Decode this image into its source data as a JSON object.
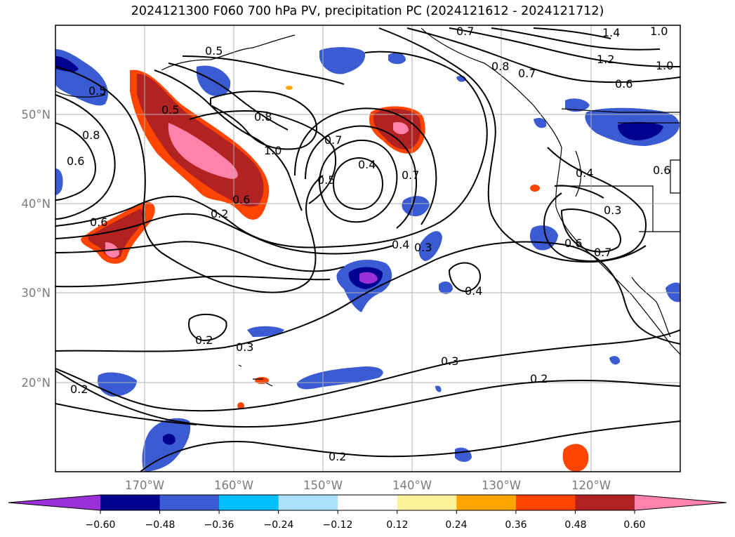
{
  "title": "2024121300 F060 700 hPa PV, precipitation PC (2024121612 - 2024121712)",
  "lat_labels": [
    "50°N",
    "40°N",
    "30°N",
    "20°N"
  ],
  "lon_labels": [
    "170°W",
    "160°W",
    "150°W",
    "140°W",
    "130°W",
    "120°W"
  ],
  "contour_labels": [
    "0.5",
    "0.5",
    "0.5",
    "0.6",
    "0.7",
    "0.8",
    "0.8",
    "0.6",
    "0.6",
    "0.2",
    "1.0",
    "0.7",
    "0.5",
    "0.4",
    "0.7",
    "0.4",
    "0.3",
    "0.4",
    "0.2",
    "0.3",
    "0.3",
    "0.2",
    "0.2",
    "0.2",
    "1.4",
    "1.2",
    "1.0",
    "1.0",
    "0.6",
    "0.7",
    "0.8",
    "0.4",
    "0.6",
    "0.3",
    "0.6",
    "0.7"
  ],
  "colorbar": {
    "colors": [
      "#9b30d9",
      "#000091",
      "#3a5bd1",
      "#00bfff",
      "#aee2fb",
      "#ffffff",
      "#fff09a",
      "#ffa500",
      "#ff4500",
      "#b22222",
      "#ff82ab"
    ],
    "ticks": [
      "−0.60",
      "−0.48",
      "−0.36",
      "−0.24",
      "−0.12",
      "0.12",
      "0.24",
      "0.36",
      "0.48",
      "0.60"
    ]
  }
}
